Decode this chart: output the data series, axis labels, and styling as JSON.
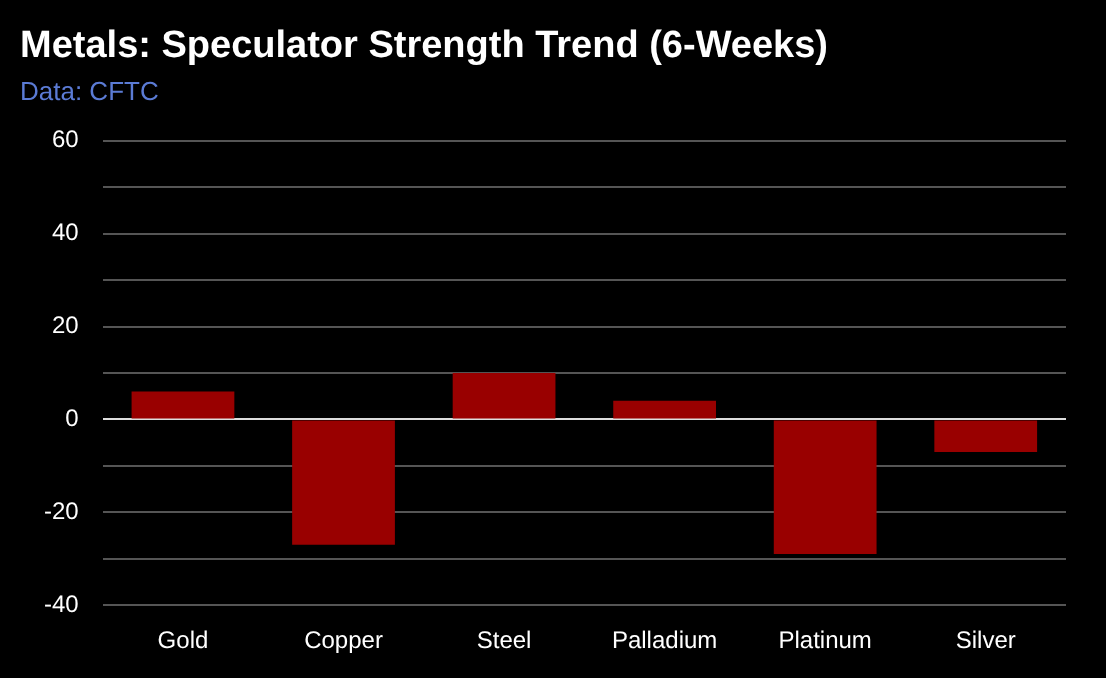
{
  "chart_data": {
    "type": "bar",
    "title": "Metals: Speculator Strength Trend (6-Weeks)",
    "subtitle": "Data: CFTC",
    "categories": [
      "Gold",
      "Copper",
      "Steel",
      "Palladium",
      "Platinum",
      "Silver"
    ],
    "values": [
      6,
      -27,
      10,
      4,
      -29,
      -7
    ],
    "color": "#990000",
    "ylim": [
      -40,
      60
    ],
    "yticks": [
      -40,
      {
        "value": -30,
        "label": null
      },
      -20,
      {
        "value": -10,
        "label": null
      },
      0,
      {
        "value": 10,
        "label": null
      },
      20,
      {
        "value": 30,
        "label": null
      },
      40,
      {
        "value": 50,
        "label": null
      },
      60
    ],
    "grid": "y"
  }
}
